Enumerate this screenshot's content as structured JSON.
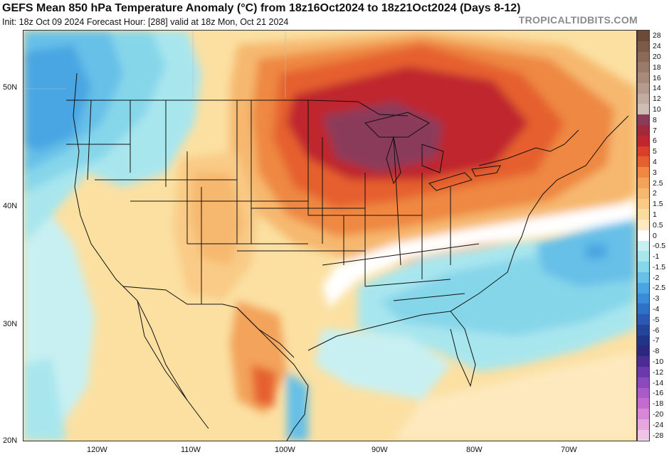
{
  "header": {
    "title": "GEFS Mean 850 hPa Temperature Anomaly (°C) from 18z16Oct2024 to 18z21Oct2024 (Days 8-12)",
    "subtitle": "Init: 18z Oct 09 2024   Forecast Hour: [288]   valid at 18z Mon, Oct 21 2024",
    "brand": "TROPICALTIDBITS.COM"
  },
  "axes": {
    "latitude_labels": [
      "50N",
      "40N",
      "30N",
      "20N"
    ],
    "longitude_labels": [
      "120W",
      "110W",
      "100W",
      "90W",
      "80W",
      "70W"
    ]
  },
  "colorbar": {
    "labels": [
      "28",
      "24",
      "20",
      "18",
      "16",
      "14",
      "12",
      "10",
      "8",
      "7",
      "6",
      "5",
      "4",
      "3",
      "2.5",
      "2",
      "1.5",
      "1",
      "0.5",
      "0",
      "-0.5",
      "-1",
      "-1.5",
      "-2",
      "-2.5",
      "-3",
      "-4",
      "-5",
      "-6",
      "-7",
      "-8",
      "-10",
      "-12",
      "-14",
      "-16",
      "-18",
      "-20",
      "-24",
      "-28"
    ],
    "colors": [
      "#6b4a3a",
      "#7b5a4a",
      "#8b6a5a",
      "#9a7a6a",
      "#a88a7c",
      "#b59a8e",
      "#c2aca2",
      "#cfbdb5",
      "#8b3a5a",
      "#a12a3a",
      "#c0272d",
      "#d8402a",
      "#e5602f",
      "#ee8842",
      "#f3a35a",
      "#f6b86e",
      "#f9cb86",
      "#fbdca0",
      "#fde9bd",
      "#ffffff",
      "#c8f0f2",
      "#a8e6ee",
      "#86d6ea",
      "#66c0e8",
      "#4aa6e2",
      "#3a8cd8",
      "#2f70c8",
      "#2a58b2",
      "#24449a",
      "#203488",
      "#2c2880",
      "#4a2c94",
      "#6a3aac",
      "#8a4abe",
      "#a85cc8",
      "#c46cce",
      "#d888d6",
      "#e6a6de",
      "#f0c4e6"
    ]
  }
}
